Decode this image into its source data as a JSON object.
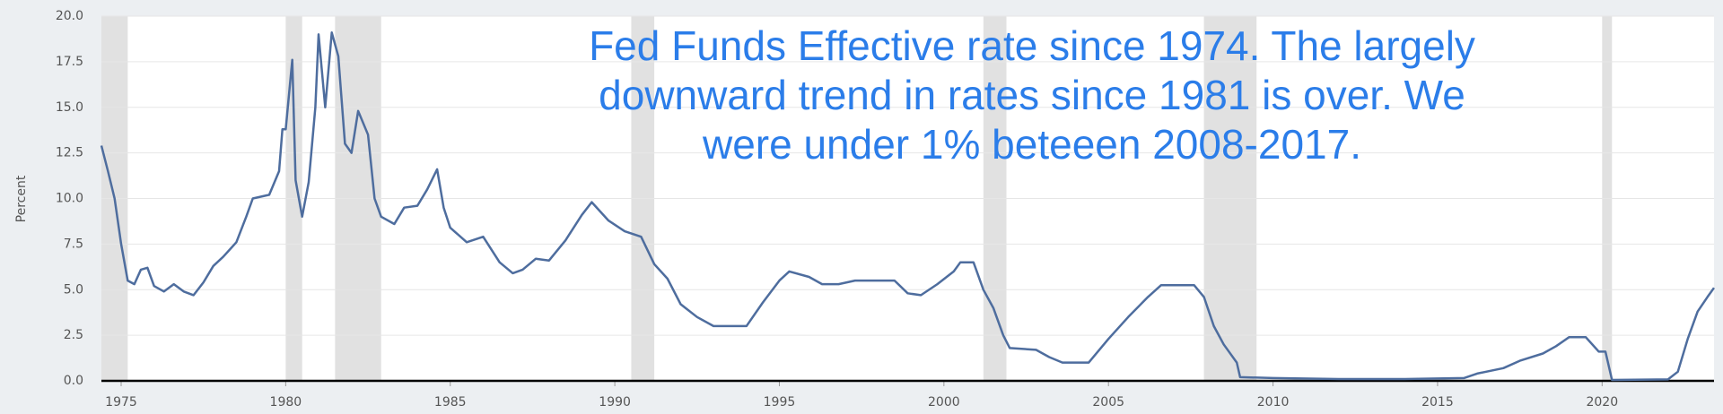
{
  "chart_data": {
    "type": "line",
    "annotation": [
      "Fed Funds Effective rate since 1974. The largely",
      "downward trend in rates since 1981 is over. We",
      "were under 1% beteeen 2008-2017."
    ],
    "ylabel": "Percent",
    "xlim": [
      1974.4,
      2023.4
    ],
    "xticks": [
      1975,
      1980,
      1985,
      1990,
      1995,
      2000,
      2005,
      2010,
      2015,
      2020
    ],
    "ylim": [
      0,
      20
    ],
    "yticks": [
      {
        "value": 0,
        "label": "0.0"
      },
      2.5,
      {
        "value": 5,
        "label": "5.0"
      },
      7.5,
      {
        "value": 10,
        "label": "10.0"
      },
      12.5,
      {
        "value": 15,
        "label": "15.0"
      },
      17.5,
      {
        "value": 20,
        "label": "20.0"
      }
    ],
    "grid": true,
    "recessions": [
      [
        1974.4,
        1975.2
      ],
      [
        1980.0,
        1980.5
      ],
      [
        1981.5,
        1982.9
      ],
      [
        1990.5,
        1991.2
      ],
      [
        2001.2,
        2001.9
      ],
      [
        2007.9,
        2009.5
      ],
      [
        2020.0,
        2020.3
      ]
    ],
    "recession_color": "#e1e1e1",
    "series": [
      {
        "color": "#4e6d9e",
        "x": [
          1974.4,
          1974.6,
          1974.8,
          1975.0,
          1975.2,
          1975.4,
          1975.6,
          1975.8,
          1976.0,
          1976.3,
          1976.6,
          1976.9,
          1977.2,
          1977.5,
          1977.8,
          1978.1,
          1978.5,
          1978.8,
          1979.0,
          1979.5,
          1979.8,
          1979.9,
          1980.0,
          1980.2,
          1980.3,
          1980.5,
          1980.7,
          1980.9,
          1981.0,
          1981.2,
          1981.4,
          1981.6,
          1981.8,
          1982.0,
          1982.2,
          1982.5,
          1982.7,
          1982.9,
          1983.3,
          1983.6,
          1984.0,
          1984.3,
          1984.6,
          1984.8,
          1985.0,
          1985.5,
          1986.0,
          1986.5,
          1986.9,
          1987.2,
          1987.6,
          1988.0,
          1988.5,
          1989.0,
          1989.3,
          1989.8,
          1990.3,
          1990.8,
          1991.2,
          1991.6,
          1992.0,
          1992.5,
          1993.0,
          1993.5,
          1994.0,
          1994.5,
          1995.0,
          1995.3,
          1995.9,
          1996.3,
          1996.8,
          1997.3,
          1997.8,
          1998.5,
          1998.9,
          1999.3,
          1999.8,
          2000.3,
          2000.5,
          2000.9,
          2001.2,
          2001.5,
          2001.8,
          2002.0,
          2002.8,
          2003.2,
          2003.6,
          2004.4,
          2005.0,
          2005.6,
          2006.2,
          2006.6,
          2007.6,
          2007.9,
          2008.2,
          2008.5,
          2008.9,
          2009.0,
          2010.0,
          2012.0,
          2014.0,
          2015.8,
          2016.2,
          2017.0,
          2017.5,
          2018.2,
          2018.6,
          2019.0,
          2019.5,
          2019.9,
          2020.1,
          2020.3,
          2022.0,
          2022.3,
          2022.6,
          2022.9,
          2023.2,
          2023.4
        ],
        "values": [
          12.9,
          11.5,
          10.0,
          7.5,
          5.5,
          5.3,
          6.1,
          6.2,
          5.2,
          4.9,
          5.3,
          4.9,
          4.7,
          5.4,
          6.3,
          6.8,
          7.6,
          9.0,
          10.0,
          10.2,
          11.5,
          13.8,
          13.8,
          17.6,
          11.0,
          9.0,
          10.9,
          15.0,
          19.0,
          15.0,
          19.1,
          17.8,
          13.0,
          12.5,
          14.8,
          13.5,
          10.0,
          9.0,
          8.6,
          9.5,
          9.6,
          10.5,
          11.6,
          9.5,
          8.4,
          7.6,
          7.9,
          6.5,
          5.9,
          6.1,
          6.7,
          6.6,
          7.7,
          9.1,
          9.8,
          8.8,
          8.2,
          7.9,
          6.4,
          5.6,
          4.2,
          3.5,
          3.0,
          3.0,
          3.0,
          4.3,
          5.5,
          6.0,
          5.7,
          5.3,
          5.3,
          5.5,
          5.5,
          5.5,
          4.8,
          4.7,
          5.3,
          6.0,
          6.5,
          6.5,
          5.0,
          4.0,
          2.5,
          1.8,
          1.7,
          1.3,
          1.0,
          1.0,
          2.3,
          3.5,
          4.6,
          5.25,
          5.25,
          4.6,
          3.0,
          2.0,
          1.0,
          0.2,
          0.15,
          0.1,
          0.1,
          0.15,
          0.4,
          0.7,
          1.1,
          1.5,
          1.9,
          2.4,
          2.4,
          1.6,
          1.6,
          0.05,
          0.08,
          0.5,
          2.3,
          3.8,
          4.6,
          5.1
        ]
      }
    ]
  }
}
